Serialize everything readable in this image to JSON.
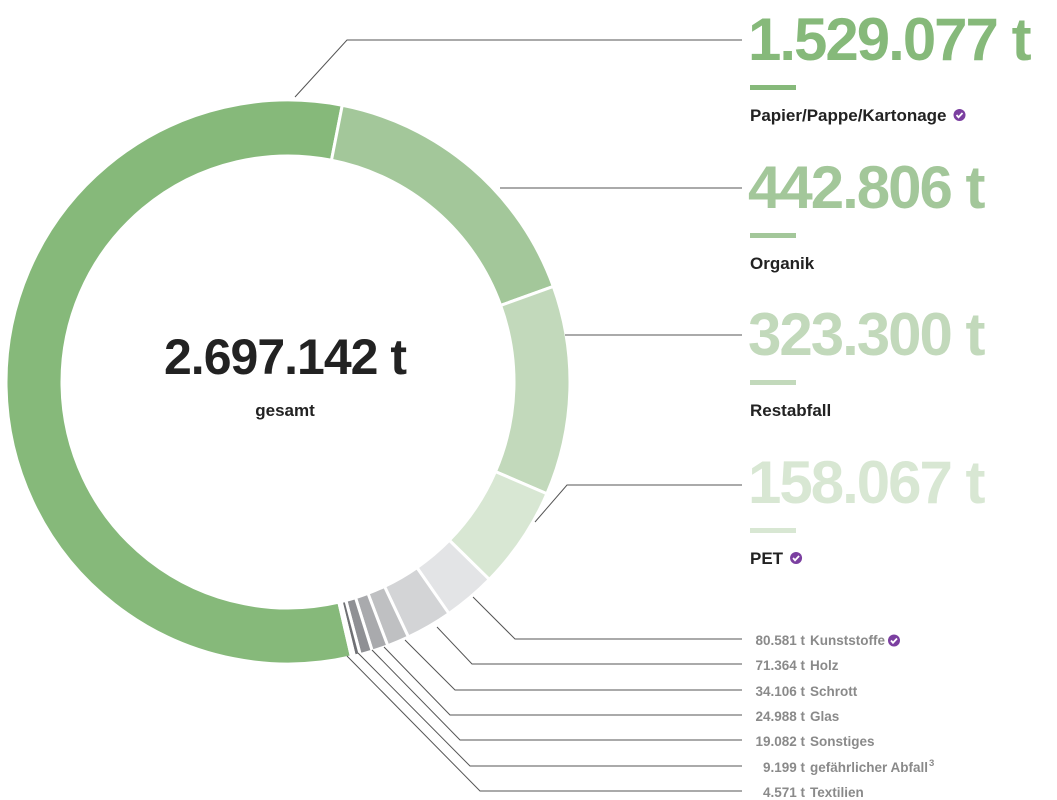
{
  "chart_data": {
    "type": "pie",
    "categories": [
      "Papier/Pappe/Kartonage",
      "Organik",
      "Restabfall",
      "PET",
      "Kunststoffe",
      "Holz",
      "Schrott",
      "Glas",
      "Sonstiges",
      "gefährlicher Abfall",
      "Textilien"
    ],
    "values": [
      1529077,
      442806,
      323300,
      158067,
      80581,
      71364,
      34106,
      24988,
      19082,
      9199,
      4571
    ],
    "value_labels": [
      "1.529.077 t",
      "442.806 t",
      "323.300 t",
      "158.067 t",
      "80.581 t",
      "71.364 t",
      "34.106 t",
      "24.988 t",
      "19.082 t",
      "9.199 t",
      "4.571 t"
    ],
    "colors": [
      "#86b97a",
      "#a3c79a",
      "#c2d9bb",
      "#d8e7d3",
      "#e3e4e6",
      "#d3d4d6",
      "#bfc0c2",
      "#a9aaad",
      "#8f9094",
      "#6f7074",
      "#404145"
    ],
    "verified": [
      true,
      false,
      false,
      true,
      true,
      false,
      false,
      false,
      false,
      false,
      false
    ],
    "superscripts": [
      null,
      null,
      null,
      null,
      null,
      null,
      null,
      null,
      null,
      "3",
      null
    ],
    "total": {
      "value": 2697142,
      "label": "2.697.142 t"
    },
    "total_caption": "gesamt"
  }
}
